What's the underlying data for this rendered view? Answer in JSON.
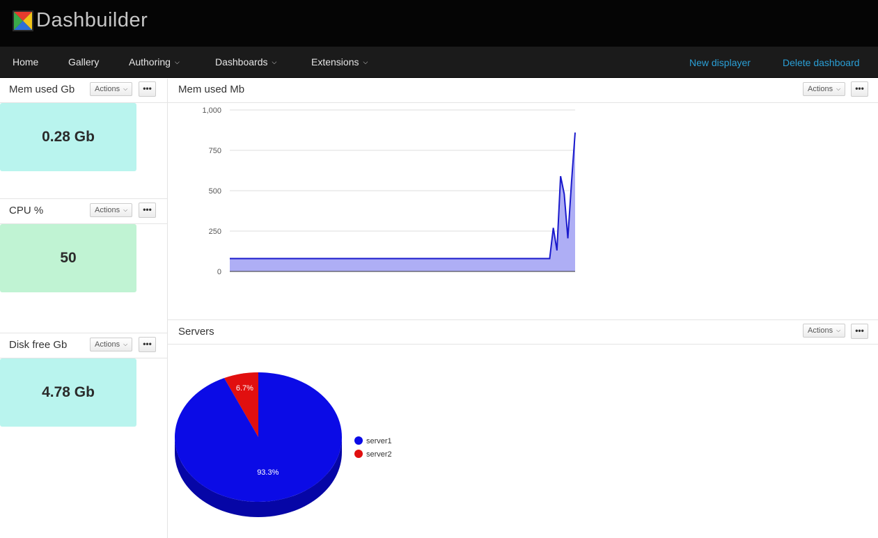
{
  "app": {
    "title": "Dashbuilder"
  },
  "nav": {
    "home": "Home",
    "gallery": "Gallery",
    "authoring": "Authoring",
    "dashboards": "Dashboards",
    "extensions": "Extensions",
    "new_displayer": "New displayer",
    "delete_dashboard": "Delete dashboard"
  },
  "panel_controls": {
    "actions_label": "Actions",
    "more_label": "•••"
  },
  "metrics": [
    {
      "title": "Mem used Gb",
      "value": "0.28 Gb",
      "color": "#b9f4ee"
    },
    {
      "title": "CPU %",
      "value": "50",
      "color": "#c0f3d3"
    },
    {
      "title": "Disk free Gb",
      "value": "4.78 Gb",
      "color": "#b9f4ee"
    }
  ],
  "mem_panel": {
    "title": "Mem used Mb"
  },
  "servers_panel": {
    "title": "Servers"
  },
  "colors": {
    "header_bg": "#050505",
    "nav_bg": "#1b1b1b",
    "link": "#2a9fd6",
    "line": "#1a1acc",
    "area": "#aeaef5",
    "server1": "#0b0be6",
    "server2": "#e10f0f"
  },
  "chart_data": [
    {
      "type": "area",
      "title": "Mem used Mb",
      "xlabel": "",
      "ylabel": "",
      "ylim": [
        0,
        1000
      ],
      "yticks": [
        0,
        250,
        500,
        750,
        1000
      ],
      "ytick_labels": [
        "0",
        "250",
        "500",
        "750",
        "1,000"
      ],
      "grid": true,
      "series": [
        {
          "values": [
            80,
            80,
            80,
            80,
            80,
            80,
            80,
            80,
            80,
            80,
            80,
            80,
            80,
            80,
            80,
            80,
            80,
            80,
            80,
            80,
            80,
            80,
            80,
            80,
            80,
            80,
            80,
            80,
            80,
            80,
            80,
            80,
            80,
            80,
            80,
            80,
            80,
            80,
            80,
            80,
            80,
            80,
            80,
            80,
            80,
            80,
            80,
            80,
            80,
            80,
            80,
            80,
            80,
            80,
            80,
            80,
            80,
            80,
            80,
            80,
            80,
            80,
            80,
            80,
            80,
            80,
            80,
            80,
            80,
            80,
            80,
            80,
            80,
            80,
            80,
            80,
            80,
            80,
            80,
            80,
            80,
            80,
            80,
            80,
            80,
            80,
            80,
            80,
            80,
            270,
            130,
            590,
            480,
            205,
            550,
            860
          ]
        }
      ]
    },
    {
      "type": "pie",
      "title": "Servers",
      "legend": "right",
      "slices": [
        {
          "label": "server1",
          "value": 93.3,
          "display": "93.3%"
        },
        {
          "label": "server2",
          "value": 6.7,
          "display": "6.7%"
        }
      ]
    }
  ]
}
